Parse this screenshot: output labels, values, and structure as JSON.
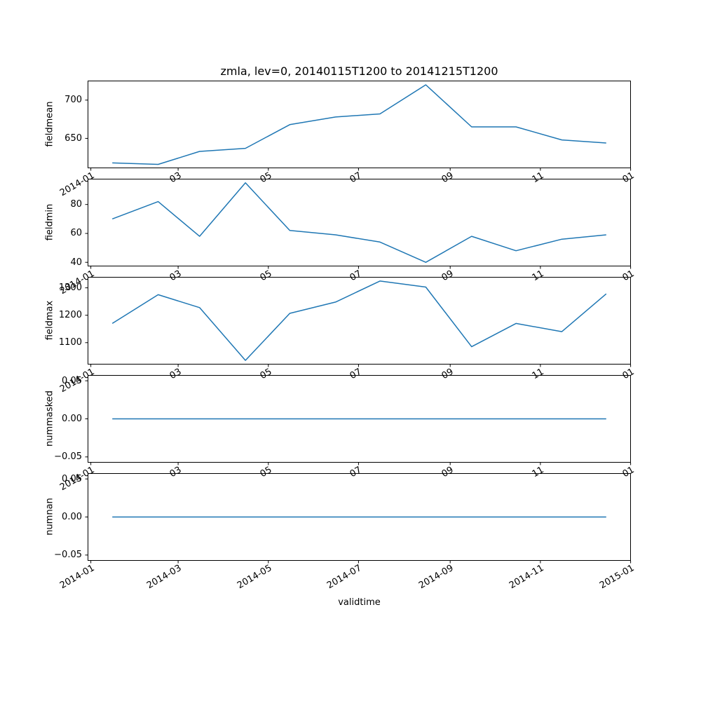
{
  "title": "zmla, lev=0, 20140115T1200 to 20141215T1200",
  "line_color": "#1f77b4",
  "axis_color": "#000000",
  "background": "#ffffff",
  "chart_data": {
    "type": "line",
    "title": "zmla, lev=0, 20140115T1200 to 20141215T1200",
    "xlabel": "validtime",
    "x_dates": [
      "2014-01-15",
      "2014-02-15",
      "2014-03-15",
      "2014-04-15",
      "2014-05-15",
      "2014-06-15",
      "2014-07-15",
      "2014-08-15",
      "2014-09-15",
      "2014-10-15",
      "2014-11-15",
      "2014-12-15"
    ],
    "x_days": [
      14.5,
      45.5,
      73.5,
      104.5,
      134.5,
      165.5,
      195.5,
      226.5,
      257.5,
      287.5,
      318.5,
      348.5
    ],
    "xlim_days": [
      -2.2,
      365.2
    ],
    "x_tick_days": [
      0,
      59,
      120,
      181,
      243,
      304,
      365
    ],
    "x_tick_labels_full": [
      "2014-01",
      "2014-03",
      "2014-05",
      "2014-07",
      "2014-09",
      "2014-11",
      "2015-01"
    ],
    "x_tick_labels_inner": [
      "2014-01",
      "03",
      "05",
      "07",
      "09",
      "11",
      "01"
    ],
    "grid": false,
    "legend": "none",
    "subplots": [
      {
        "name": "fieldmean",
        "ylabel": "fieldmean",
        "ylim": [
          611,
          725.5
        ],
        "yticks": [
          {
            "v": 650,
            "label": "650"
          },
          {
            "v": 700,
            "label": "700"
          }
        ],
        "values": [
          618,
          616,
          633,
          637,
          668,
          678,
          682,
          720,
          665,
          665,
          648,
          644
        ]
      },
      {
        "name": "fieldmin",
        "ylabel": "fieldmin",
        "ylim": [
          37.2,
          97.8
        ],
        "yticks": [
          {
            "v": 40,
            "label": "40"
          },
          {
            "v": 60,
            "label": "60"
          },
          {
            "v": 80,
            "label": "80"
          }
        ],
        "values": [
          70,
          82,
          58,
          95,
          62,
          59,
          54,
          40,
          58,
          48,
          56,
          59
        ]
      },
      {
        "name": "fieldmax",
        "ylabel": "fieldmax",
        "ylim": [
          1020,
          1340
        ],
        "yticks": [
          {
            "v": 1100,
            "label": "1100"
          },
          {
            "v": 1200,
            "label": "1200"
          },
          {
            "v": 1300,
            "label": "1300"
          }
        ],
        "values": [
          1170,
          1275,
          1228,
          1035,
          1207,
          1248,
          1325,
          1303,
          1085,
          1170,
          1140,
          1278
        ]
      },
      {
        "name": "nummasked",
        "ylabel": "nummasked",
        "ylim": [
          -0.0575,
          0.0575
        ],
        "yticks": [
          {
            "v": -0.05,
            "label": "−0.05"
          },
          {
            "v": 0,
            "label": "0.00"
          },
          {
            "v": 0.05,
            "label": "0.05"
          }
        ],
        "values": [
          0,
          0,
          0,
          0,
          0,
          0,
          0,
          0,
          0,
          0,
          0,
          0
        ]
      },
      {
        "name": "numnan",
        "ylabel": "numnan",
        "ylim": [
          -0.0575,
          0.0575
        ],
        "yticks": [
          {
            "v": -0.05,
            "label": "−0.05"
          },
          {
            "v": 0,
            "label": "0.00"
          },
          {
            "v": 0.05,
            "label": "0.05"
          }
        ],
        "values": [
          0,
          0,
          0,
          0,
          0,
          0,
          0,
          0,
          0,
          0,
          0,
          0
        ]
      }
    ]
  }
}
